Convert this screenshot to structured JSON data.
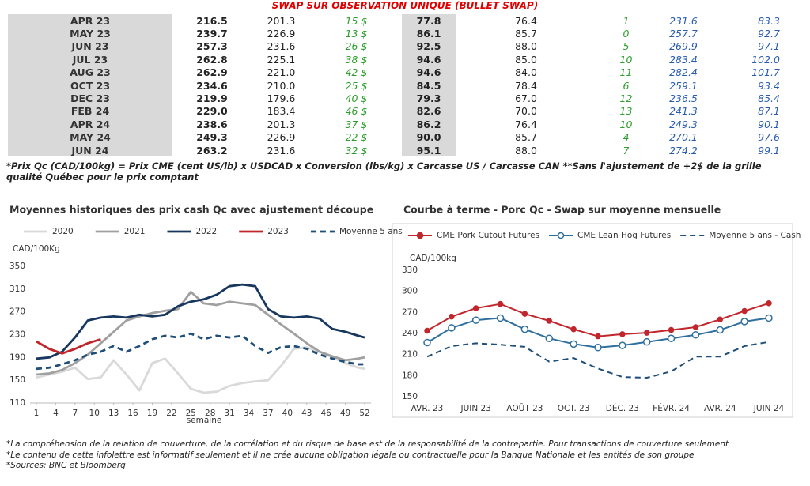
{
  "header": {
    "title": "SWAP SUR OBSERVATION UNIQUE (BULLET SWAP)"
  },
  "table": {
    "rows": [
      [
        "APR 23",
        "216.5",
        "201.3",
        "15 $",
        "77.8",
        "76.4",
        "1",
        "231.6",
        "83.3"
      ],
      [
        "MAY 23",
        "239.7",
        "226.9",
        "13 $",
        "86.1",
        "85.7",
        "0",
        "257.7",
        "92.7"
      ],
      [
        "JUN 23",
        "257.3",
        "231.6",
        "26 $",
        "92.5",
        "88.0",
        "5",
        "269.9",
        "97.1"
      ],
      [
        "JUL 23",
        "262.8",
        "225.1",
        "38 $",
        "94.6",
        "85.0",
        "10",
        "283.4",
        "102.0"
      ],
      [
        "AUG 23",
        "262.9",
        "221.0",
        "42 $",
        "94.6",
        "84.0",
        "11",
        "282.4",
        "101.7"
      ],
      [
        "OCT 23",
        "234.6",
        "210.0",
        "25 $",
        "84.5",
        "78.4",
        "6",
        "259.1",
        "93.4"
      ],
      [
        "DEC 23",
        "219.9",
        "179.6",
        "40 $",
        "79.3",
        "67.0",
        "12",
        "236.5",
        "85.4"
      ],
      [
        "FEB 24",
        "229.0",
        "183.4",
        "46 $",
        "82.6",
        "70.0",
        "13",
        "241.3",
        "87.1"
      ],
      [
        "APR 24",
        "238.6",
        "201.3",
        "37 $",
        "86.2",
        "76.4",
        "10",
        "249.3",
        "90.1"
      ],
      [
        "MAY 24",
        "249.3",
        "226.9",
        "22 $",
        "90.0",
        "85.7",
        "4",
        "270.1",
        "97.6"
      ],
      [
        "JUN 24",
        "263.2",
        "231.6",
        "32 $",
        "95.1",
        "88.0",
        "7",
        "274.2",
        "99.1"
      ]
    ]
  },
  "table_note": "*Prix Qc (CAD/100kg) = Prix CME (cent US/lb) x USDCAD x Conversion (lbs/kg) x Carcasse US / Carcasse CAN **Sans l'ajustement de +2$ de la grille qualité Québec pour le prix comptant",
  "chart_data": [
    {
      "type": "line",
      "title": "Moyennes historiques des prix cash Qc avec ajustement découpe",
      "y_label": "CAD/100Kg",
      "x_label": "semaine",
      "x": [
        1,
        3,
        5,
        7,
        9,
        11,
        13,
        15,
        17,
        19,
        21,
        23,
        25,
        27,
        29,
        31,
        33,
        35,
        37,
        39,
        41,
        43,
        45,
        47,
        49,
        51,
        52
      ],
      "xlim": [
        1,
        52
      ],
      "xticks": [
        1,
        4,
        7,
        10,
        13,
        16,
        19,
        22,
        25,
        28,
        31,
        34,
        37,
        40,
        43,
        46,
        49,
        52
      ],
      "ylim": [
        110,
        350
      ],
      "yticks": [
        110,
        150,
        190,
        230,
        270,
        310,
        350
      ],
      "series": [
        {
          "name": "2020",
          "color": "#d9d9d9",
          "dashed": false,
          "values": [
            155,
            160,
            165,
            172,
            152,
            155,
            185,
            160,
            132,
            180,
            188,
            162,
            135,
            128,
            130,
            140,
            145,
            148,
            150,
            175,
            205,
            208,
            200,
            190,
            180,
            172,
            170
          ]
        },
        {
          "name": "2021",
          "color": "#a0a0a0",
          "dashed": false,
          "values": [
            160,
            162,
            168,
            180,
            195,
            215,
            235,
            255,
            262,
            268,
            272,
            275,
            305,
            285,
            282,
            288,
            285,
            282,
            265,
            248,
            232,
            215,
            200,
            192,
            185,
            188,
            190
          ]
        },
        {
          "name": "2022",
          "color": "#17375e",
          "dashed": false,
          "values": [
            188,
            190,
            200,
            225,
            255,
            260,
            262,
            260,
            265,
            262,
            265,
            280,
            288,
            292,
            300,
            315,
            318,
            315,
            275,
            262,
            260,
            262,
            258,
            240,
            235,
            228,
            225
          ]
        },
        {
          "name": "2023",
          "color": "#c0262c",
          "dashed": false,
          "values": [
            218,
            205,
            197,
            205,
            215,
            222,
            null,
            null,
            null,
            null,
            null,
            null,
            null,
            null,
            null,
            null,
            null,
            null,
            null,
            null,
            null,
            null,
            null,
            null,
            null,
            null,
            null
          ]
        },
        {
          "name": "Moyenne 5 ans",
          "color": "#1f4e79",
          "dashed": true,
          "values": [
            170,
            172,
            178,
            185,
            195,
            200,
            210,
            200,
            210,
            222,
            228,
            225,
            232,
            222,
            228,
            225,
            228,
            210,
            198,
            208,
            210,
            205,
            195,
            188,
            182,
            178,
            178
          ]
        }
      ]
    },
    {
      "type": "line",
      "title": "Courbe à terme - Porc Qc - Swap sur moyenne mensuelle",
      "y_label": "CAD/100kg",
      "categories": [
        "AVR. 23",
        null,
        "JUIN 23",
        null,
        "AOÛT 23",
        null,
        "OCT. 23",
        null,
        "DÉC. 23",
        null,
        "FÉVR. 24",
        null,
        "AVR. 24",
        null,
        "JUIN 24"
      ],
      "ylim": [
        150,
        330
      ],
      "yticks": [
        150,
        180,
        210,
        240,
        270,
        300,
        330
      ],
      "series": [
        {
          "name": "CME Pork Cutout Futures",
          "color": "#c0262c",
          "marker": "filled",
          "dashed": false,
          "values": [
            244,
            264,
            276,
            282,
            268,
            258,
            246,
            236,
            239,
            241,
            245,
            249,
            260,
            272,
            283
          ]
        },
        {
          "name": "CME Lean Hog Futures",
          "color": "#2e6f9e",
          "marker": "open",
          "dashed": false,
          "values": [
            227,
            248,
            259,
            262,
            246,
            233,
            225,
            220,
            223,
            228,
            233,
            238,
            245,
            257,
            262
          ]
        },
        {
          "name": "Moyenne 5 ans - Cash",
          "color": "#1f4e79",
          "dashed": true,
          "values": [
            207,
            222,
            226,
            224,
            221,
            200,
            205,
            190,
            178,
            177,
            186,
            207,
            207,
            222,
            228
          ]
        }
      ]
    }
  ],
  "footnotes": [
    "*La compréhension de la relation de couverture, de la corrélation et du risque de base est de la responsabilité de la contrepartie. Pour transactions de couverture seulement",
    "*Le contenu de cette infolettre est informatif seulement et il ne crée aucune obligation légale ou contractuelle pour la Banque Nationale et les entités de son groupe",
    "*Sources: BNC et Bloomberg"
  ]
}
